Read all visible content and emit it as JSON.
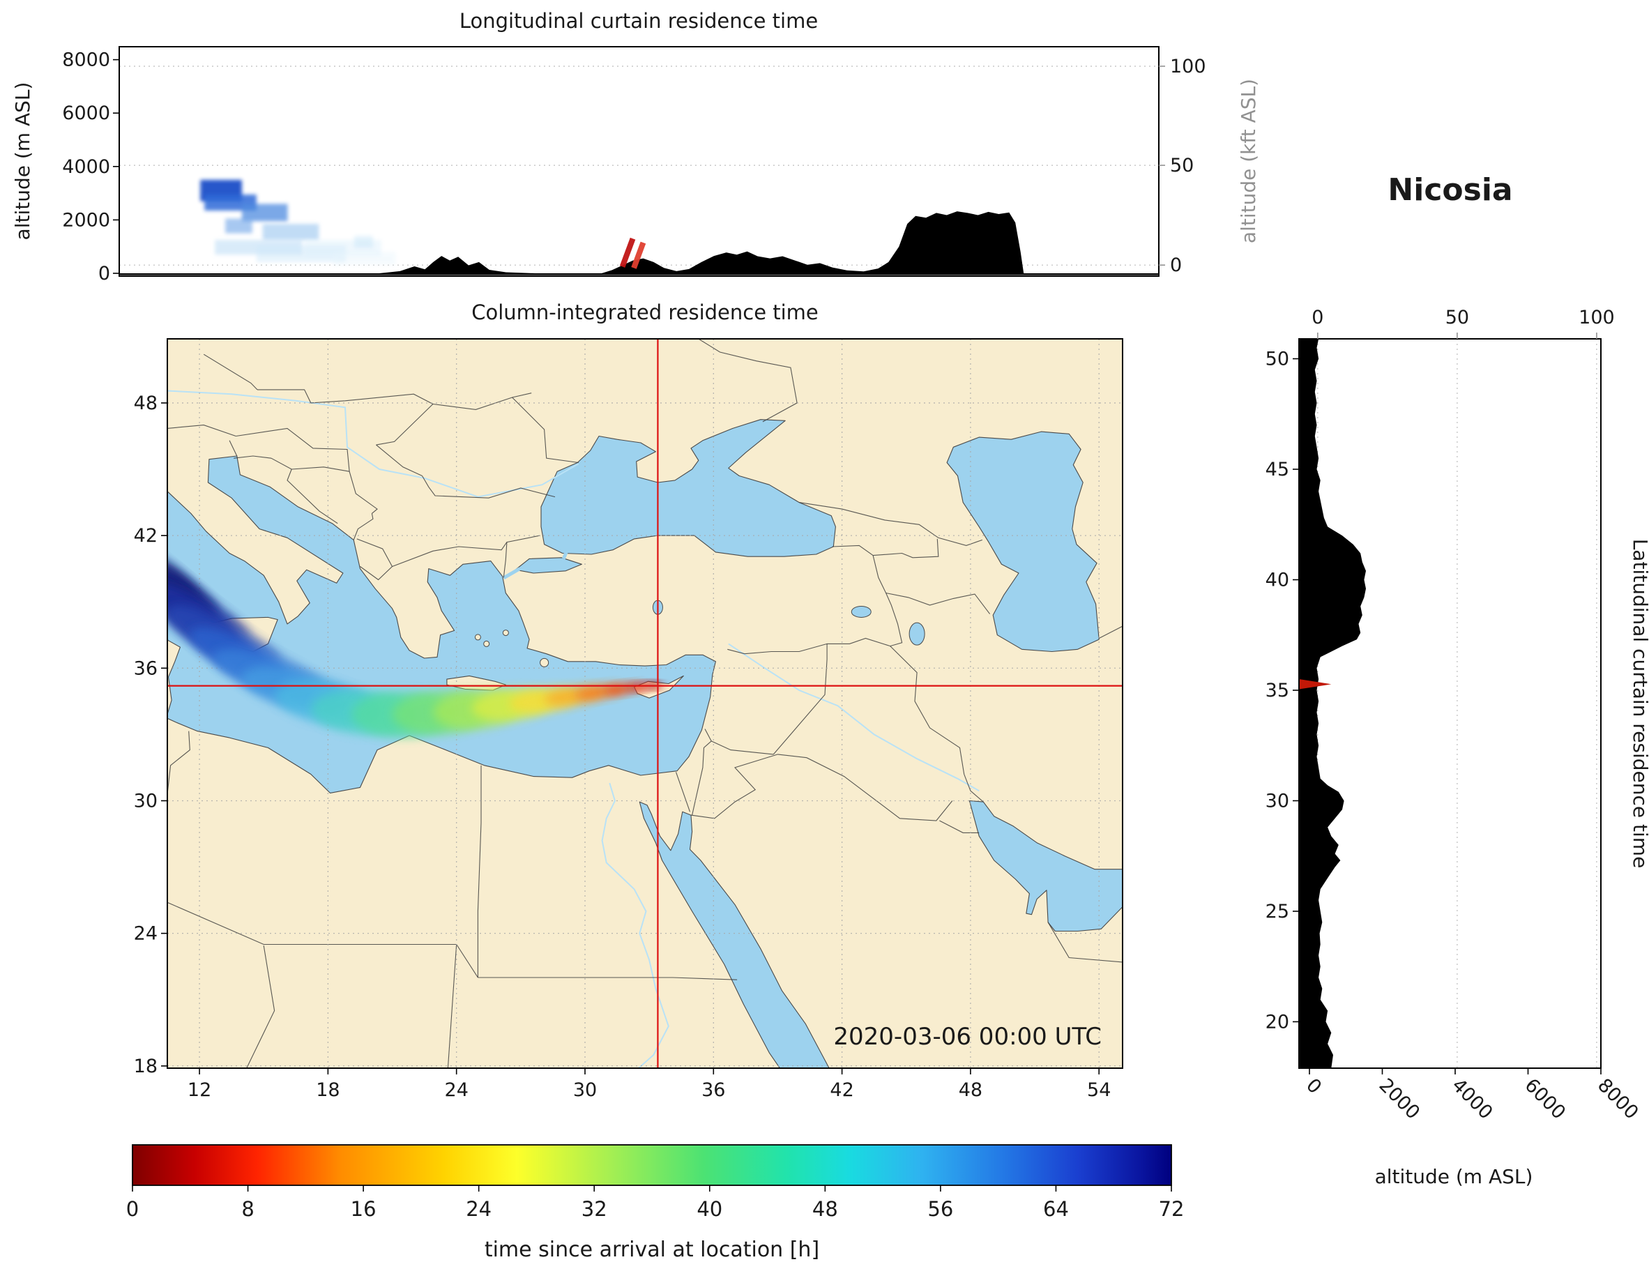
{
  "station": "Nicosia",
  "timestamp": "2020-03-06 00:00 UTC",
  "palette": {
    "land": "#f8edcf",
    "water": "#9dd2ee",
    "coast": "#4a4a4a",
    "border": "#3c3c3c",
    "grid": "#a8a8a8",
    "terrain": "#000000",
    "crosshair": "#dd1111",
    "secondary_axis": "#919191",
    "text": "#1a1a1a"
  },
  "chart_data": [
    {
      "id": "longitudinal_curtain",
      "type": "heatmap",
      "title": "Longitudinal curtain residence time",
      "ylabel": "altitude (m ASL)",
      "ylabel_right": "altitude (kft ASL)",
      "xlim": [
        8,
        58
      ],
      "ylim": [
        0,
        8400
      ],
      "yticks": [
        0,
        2000,
        4000,
        6000,
        8000
      ],
      "yticks_right": [
        {
          "value": 0,
          "frac": 0.952
        },
        {
          "value": 50,
          "frac": 0.517
        },
        {
          "value": 100,
          "frac": 0.085
        }
      ],
      "terrain_profile_lon_m": [
        [
          8,
          0
        ],
        [
          20.5,
          0
        ],
        [
          21.5,
          80
        ],
        [
          22.2,
          260
        ],
        [
          22.7,
          150
        ],
        [
          23.1,
          420
        ],
        [
          23.5,
          650
        ],
        [
          23.9,
          480
        ],
        [
          24.3,
          620
        ],
        [
          24.8,
          300
        ],
        [
          25.3,
          420
        ],
        [
          25.8,
          130
        ],
        [
          26.6,
          40
        ],
        [
          28,
          0
        ],
        [
          31.2,
          0
        ],
        [
          31.7,
          120
        ],
        [
          32.2,
          300
        ],
        [
          32.7,
          480
        ],
        [
          33.2,
          560
        ],
        [
          33.7,
          420
        ],
        [
          34.2,
          200
        ],
        [
          34.8,
          80
        ],
        [
          35.4,
          160
        ],
        [
          36.0,
          420
        ],
        [
          36.6,
          650
        ],
        [
          37.2,
          780
        ],
        [
          37.7,
          700
        ],
        [
          38.2,
          820
        ],
        [
          38.7,
          640
        ],
        [
          39.3,
          560
        ],
        [
          39.9,
          640
        ],
        [
          40.5,
          480
        ],
        [
          41.1,
          320
        ],
        [
          41.7,
          380
        ],
        [
          42.3,
          220
        ],
        [
          43.0,
          110
        ],
        [
          43.8,
          70
        ],
        [
          44.5,
          180
        ],
        [
          45.0,
          420
        ],
        [
          45.5,
          1000
        ],
        [
          45.9,
          1850
        ],
        [
          46.3,
          2150
        ],
        [
          46.8,
          2080
        ],
        [
          47.3,
          2260
        ],
        [
          47.8,
          2180
        ],
        [
          48.3,
          2320
        ],
        [
          48.8,
          2260
        ],
        [
          49.3,
          2180
        ],
        [
          49.8,
          2300
        ],
        [
          50.3,
          2220
        ],
        [
          50.8,
          2280
        ],
        [
          51.1,
          1900
        ],
        [
          51.35,
          800
        ],
        [
          51.5,
          0
        ],
        [
          58,
          0
        ]
      ],
      "residence_patches": [
        {
          "lon": [
            11.9,
            13.9
          ],
          "alt": [
            2700,
            3500
          ],
          "color": "#1e50c8",
          "opacity": 0.95
        },
        {
          "lon": [
            12.1,
            14.6
          ],
          "alt": [
            2350,
            2950
          ],
          "color": "#2f6ad8",
          "opacity": 0.85
        },
        {
          "lon": [
            13.9,
            16.1
          ],
          "alt": [
            1950,
            2600
          ],
          "color": "#4f8ce0",
          "opacity": 0.75
        },
        {
          "lon": [
            13.1,
            14.4
          ],
          "alt": [
            1500,
            2050
          ],
          "color": "#6ea4e8",
          "opacity": 0.6
        },
        {
          "lon": [
            14.9,
            17.6
          ],
          "alt": [
            1250,
            1850
          ],
          "color": "#8fc0ee",
          "opacity": 0.55
        },
        {
          "lon": [
            12.6,
            16.8
          ],
          "alt": [
            700,
            1250
          ],
          "color": "#b5d8f4",
          "opacity": 0.5
        },
        {
          "lon": [
            14.6,
            18.9
          ],
          "alt": [
            420,
            1050
          ],
          "color": "#cfe8fa",
          "opacity": 0.5
        },
        {
          "lon": [
            16.9,
            20.6
          ],
          "alt": [
            650,
            1250
          ],
          "color": "#dceffb",
          "opacity": 0.45
        },
        {
          "lon": [
            18.3,
            21.3
          ],
          "alt": [
            300,
            800
          ],
          "color": "#e6f4fc",
          "opacity": 0.4
        },
        {
          "lon": [
            19.3,
            20.2
          ],
          "alt": [
            950,
            1400
          ],
          "color": "#c5e4f8",
          "opacity": 0.45
        }
      ],
      "arrival_streaks": [
        {
          "lon": [
            32.2,
            32.7
          ],
          "alt": [
            250,
            1300
          ],
          "color": "#c01515"
        },
        {
          "lon": [
            32.75,
            33.2
          ],
          "alt": [
            200,
            1150
          ],
          "color": "#e04030"
        }
      ]
    },
    {
      "id": "column_map",
      "type": "heatmap",
      "title": "Column-integrated residence time",
      "xticks": [
        12,
        18,
        24,
        30,
        36,
        42,
        48,
        54
      ],
      "yticks": [
        18,
        24,
        30,
        36,
        42,
        48
      ],
      "xlim": [
        10.5,
        55.1
      ],
      "ylim": [
        17.9,
        50.9
      ],
      "receptor": {
        "lon": 33.4,
        "lat": 35.2
      },
      "timestamp": "2020-03-06 00:00 UTC",
      "plume_filaments": [
        {
          "lon": 11.3,
          "lat": 39.9,
          "rx": 2.0,
          "ry": 0.28,
          "rot": 40,
          "c": "#10156e",
          "o": 0.6
        },
        {
          "lon": 12.4,
          "lat": 38.9,
          "rx": 2.4,
          "ry": 0.3,
          "rot": 36,
          "c": "#15208a",
          "o": 0.55
        },
        {
          "lon": 13.6,
          "lat": 37.8,
          "rx": 2.6,
          "ry": 0.3,
          "rot": 33,
          "c": "#1c37a6",
          "o": 0.5
        },
        {
          "lon": 15.2,
          "lat": 36.6,
          "rx": 2.8,
          "ry": 0.3,
          "rot": 27,
          "c": "#2e62c8",
          "o": 0.45
        },
        {
          "lon": 17.0,
          "lat": 35.5,
          "rx": 3.0,
          "ry": 0.35,
          "rot": 18,
          "c": "#3f8fd8",
          "o": 0.4
        }
      ],
      "plume_blobs": [
        {
          "lon": 10.6,
          "lat": 40.0,
          "rx": 1.6,
          "ry": 0.5,
          "rot": 38,
          "c": "#141a78",
          "o": 0.85
        },
        {
          "lon": 10.9,
          "lat": 39.3,
          "rx": 2.2,
          "ry": 0.75,
          "rot": 36,
          "c": "#18207f",
          "o": 0.9
        },
        {
          "lon": 11.7,
          "lat": 38.3,
          "rx": 2.5,
          "ry": 0.85,
          "rot": 34,
          "c": "#1e2f9e",
          "o": 0.9
        },
        {
          "lon": 12.7,
          "lat": 37.4,
          "rx": 2.5,
          "ry": 0.8,
          "rot": 32,
          "c": "#2547b4",
          "o": 0.85
        },
        {
          "lon": 13.8,
          "lat": 36.5,
          "rx": 2.5,
          "ry": 0.8,
          "rot": 28,
          "c": "#2c62cd",
          "o": 0.85
        },
        {
          "lon": 15.0,
          "lat": 35.7,
          "rx": 2.5,
          "ry": 0.8,
          "rot": 22,
          "c": "#3780da",
          "o": 0.8
        },
        {
          "lon": 16.4,
          "lat": 35.0,
          "rx": 2.5,
          "ry": 0.85,
          "rot": 16,
          "c": "#449de2",
          "o": 0.78
        },
        {
          "lon": 18.0,
          "lat": 34.4,
          "rx": 2.5,
          "ry": 0.95,
          "rot": 10,
          "c": "#4cbbe2",
          "o": 0.75
        },
        {
          "lon": 19.7,
          "lat": 34.0,
          "rx": 2.5,
          "ry": 1.0,
          "rot": 4,
          "c": "#4cd2c4",
          "o": 0.75
        },
        {
          "lon": 21.5,
          "lat": 33.9,
          "rx": 2.4,
          "ry": 1.05,
          "rot": 0,
          "c": "#55dc9e",
          "o": 0.75
        },
        {
          "lon": 23.3,
          "lat": 34.0,
          "rx": 2.3,
          "ry": 1.0,
          "rot": -3,
          "c": "#78e274",
          "o": 0.75
        },
        {
          "lon": 25.0,
          "lat": 34.15,
          "rx": 2.1,
          "ry": 0.9,
          "rot": -5,
          "c": "#a8e857",
          "o": 0.75
        },
        {
          "lon": 26.6,
          "lat": 34.35,
          "rx": 1.9,
          "ry": 0.72,
          "rot": -6,
          "c": "#d9ec45",
          "o": 0.8
        },
        {
          "lon": 28.1,
          "lat": 34.55,
          "rx": 1.65,
          "ry": 0.55,
          "rot": -7,
          "c": "#f6dd37",
          "o": 0.82
        },
        {
          "lon": 29.5,
          "lat": 34.75,
          "rx": 1.4,
          "ry": 0.4,
          "rot": -8,
          "c": "#f8b02b",
          "o": 0.85
        },
        {
          "lon": 30.7,
          "lat": 34.92,
          "rx": 1.15,
          "ry": 0.3,
          "rot": -8,
          "c": "#f47d20",
          "o": 0.88
        },
        {
          "lon": 31.8,
          "lat": 35.07,
          "rx": 0.9,
          "ry": 0.22,
          "rot": -7,
          "c": "#e94e18",
          "o": 0.9
        },
        {
          "lon": 32.7,
          "lat": 35.17,
          "rx": 0.6,
          "ry": 0.16,
          "rot": -4,
          "c": "#d22412",
          "o": 0.92
        },
        {
          "lon": 33.3,
          "lat": 35.22,
          "rx": 0.34,
          "ry": 0.13,
          "rot": 0,
          "c": "#9e0e0e",
          "o": 0.95
        }
      ]
    },
    {
      "id": "latitudinal_curtain",
      "type": "heatmap",
      "title": "Latitudinal curtain residence time",
      "xlabel": "altitude (m ASL)",
      "xticks": [
        0,
        2000,
        4000,
        6000,
        8000
      ],
      "xticks_top": [
        {
          "value": 0,
          "frac": 0.062
        },
        {
          "value": 50,
          "frac": 0.524
        },
        {
          "value": 100,
          "frac": 0.986
        }
      ],
      "yticks": [
        20,
        25,
        30,
        35,
        40,
        45,
        50
      ],
      "terrain_profile_lat_m": [
        [
          17.9,
          600
        ],
        [
          18.5,
          650
        ],
        [
          19,
          500
        ],
        [
          19.5,
          600
        ],
        [
          20,
          450
        ],
        [
          20.5,
          500
        ],
        [
          21,
          300
        ],
        [
          21.5,
          350
        ],
        [
          22,
          250
        ],
        [
          22.5,
          300
        ],
        [
          23,
          250
        ],
        [
          23.5,
          300
        ],
        [
          24,
          280
        ],
        [
          24.5,
          350
        ],
        [
          25,
          300
        ],
        [
          25.5,
          250
        ],
        [
          26,
          300
        ],
        [
          26.5,
          500
        ],
        [
          27,
          700
        ],
        [
          27.3,
          850
        ],
        [
          27.6,
          700
        ],
        [
          28,
          800
        ],
        [
          28.4,
          600
        ],
        [
          28.8,
          500
        ],
        [
          29.2,
          700
        ],
        [
          29.6,
          900
        ],
        [
          30,
          950
        ],
        [
          30.4,
          800
        ],
        [
          30.7,
          500
        ],
        [
          31,
          300
        ],
        [
          31.5,
          250
        ],
        [
          32,
          200
        ],
        [
          32.5,
          250
        ],
        [
          33,
          200
        ],
        [
          33.5,
          250
        ],
        [
          34,
          200
        ],
        [
          34.5,
          250
        ],
        [
          35,
          200
        ],
        [
          35.5,
          250
        ],
        [
          36,
          200
        ],
        [
          36.5,
          300
        ],
        [
          37,
          900
        ],
        [
          37.3,
          1300
        ],
        [
          37.6,
          1400
        ],
        [
          38,
          1350
        ],
        [
          38.4,
          1450
        ],
        [
          38.8,
          1400
        ],
        [
          39.2,
          1500
        ],
        [
          39.6,
          1550
        ],
        [
          40,
          1500
        ],
        [
          40.4,
          1550
        ],
        [
          40.8,
          1450
        ],
        [
          41.2,
          1400
        ],
        [
          41.6,
          1200
        ],
        [
          42,
          900
        ],
        [
          42.4,
          500
        ],
        [
          42.8,
          400
        ],
        [
          43.2,
          350
        ],
        [
          43.6,
          300
        ],
        [
          44,
          250
        ],
        [
          44.5,
          300
        ],
        [
          45,
          200
        ],
        [
          45.5,
          250
        ],
        [
          46,
          200
        ],
        [
          46.5,
          150
        ],
        [
          47,
          200
        ],
        [
          47.5,
          150
        ],
        [
          48,
          200
        ],
        [
          48.5,
          150
        ],
        [
          49,
          200
        ],
        [
          49.5,
          150
        ],
        [
          50,
          250
        ],
        [
          50.5,
          200
        ],
        [
          50.9,
          250
        ]
      ],
      "arrival_mark": {
        "lat": [
          35.05,
          35.5
        ],
        "alt": 600,
        "color": "#c21807"
      }
    },
    {
      "id": "colorbar",
      "label": "time since arrival at location [h]",
      "ticks": [
        0,
        8,
        16,
        24,
        32,
        40,
        48,
        56,
        64,
        72
      ],
      "range": [
        0,
        72
      ],
      "gradient_stops": [
        [
          0,
          "#7f0000"
        ],
        [
          0.06,
          "#c80000"
        ],
        [
          0.12,
          "#ff2400"
        ],
        [
          0.2,
          "#ff8c00"
        ],
        [
          0.3,
          "#ffd300"
        ],
        [
          0.37,
          "#fdff2a"
        ],
        [
          0.46,
          "#a5ef52"
        ],
        [
          0.55,
          "#4ce273"
        ],
        [
          0.63,
          "#21e3ac"
        ],
        [
          0.69,
          "#19dbe0"
        ],
        [
          0.76,
          "#2fb2f0"
        ],
        [
          0.84,
          "#2377e5"
        ],
        [
          0.91,
          "#1a3fd0"
        ],
        [
          0.97,
          "#0a15a0"
        ],
        [
          1,
          "#00007f"
        ]
      ]
    }
  ]
}
